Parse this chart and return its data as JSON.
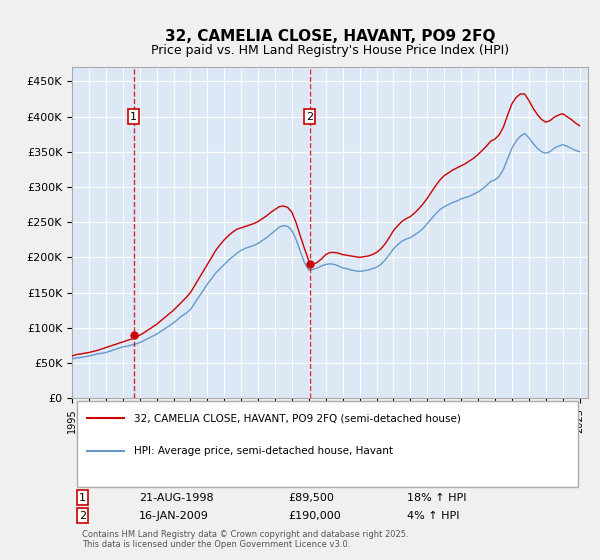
{
  "title": "32, CAMELIA CLOSE, HAVANT, PO9 2FQ",
  "subtitle": "Price paid vs. HM Land Registry's House Price Index (HPI)",
  "ylabel_ticks": [
    "£0",
    "£50K",
    "£100K",
    "£150K",
    "£200K",
    "£250K",
    "£300K",
    "£350K",
    "£400K",
    "£450K"
  ],
  "ytick_vals": [
    0,
    50000,
    100000,
    150000,
    200000,
    250000,
    300000,
    350000,
    400000,
    450000
  ],
  "ylim": [
    0,
    470000
  ],
  "xlim_start": 1995.0,
  "xlim_end": 2025.5,
  "background_color": "#e8f0f8",
  "plot_bg": "#dce8f5",
  "grid_color": "#ffffff",
  "line_color_red": "#cc0000",
  "line_color_blue": "#6699cc",
  "purchase1_x": 1998.645,
  "purchase1_y": 89500,
  "purchase1_label": "1",
  "purchase2_x": 2009.04,
  "purchase2_y": 190000,
  "purchase2_label": "2",
  "legend_label_red": "32, CAMELIA CLOSE, HAVANT, PO9 2FQ (semi-detached house)",
  "legend_label_blue": "HPI: Average price, semi-detached house, Havant",
  "table_row1": [
    "1",
    "21-AUG-1998",
    "£89,500",
    "18% ↑ HPI"
  ],
  "table_row2": [
    "2",
    "16-JAN-2009",
    "£190,000",
    "4% ↑ HPI"
  ],
  "footnote": "Contains HM Land Registry data © Crown copyright and database right 2025.\nThis data is licensed under the Open Government Licence v3.0.",
  "hpi_years": [
    1995,
    1995.25,
    1995.5,
    1995.75,
    1996,
    1996.25,
    1996.5,
    1996.75,
    1997,
    1997.25,
    1997.5,
    1997.75,
    1998,
    1998.25,
    1998.5,
    1998.75,
    1999,
    1999.25,
    1999.5,
    1999.75,
    2000,
    2000.25,
    2000.5,
    2000.75,
    2001,
    2001.25,
    2001.5,
    2001.75,
    2002,
    2002.25,
    2002.5,
    2002.75,
    2003,
    2003.25,
    2003.5,
    2003.75,
    2004,
    2004.25,
    2004.5,
    2004.75,
    2005,
    2005.25,
    2005.5,
    2005.75,
    2006,
    2006.25,
    2006.5,
    2006.75,
    2007,
    2007.25,
    2007.5,
    2007.75,
    2008,
    2008.25,
    2008.5,
    2008.75,
    2009,
    2009.25,
    2009.5,
    2009.75,
    2010,
    2010.25,
    2010.5,
    2010.75,
    2011,
    2011.25,
    2011.5,
    2011.75,
    2012,
    2012.25,
    2012.5,
    2012.75,
    2013,
    2013.25,
    2013.5,
    2013.75,
    2014,
    2014.25,
    2014.5,
    2014.75,
    2015,
    2015.25,
    2015.5,
    2015.75,
    2016,
    2016.25,
    2016.5,
    2016.75,
    2017,
    2017.25,
    2017.5,
    2017.75,
    2018,
    2018.25,
    2018.5,
    2018.75,
    2019,
    2019.25,
    2019.5,
    2019.75,
    2020,
    2020.25,
    2020.5,
    2020.75,
    2021,
    2021.25,
    2021.5,
    2021.75,
    2022,
    2022.25,
    2022.5,
    2022.75,
    2023,
    2023.25,
    2023.5,
    2023.75,
    2024,
    2024.25,
    2024.5,
    2024.75,
    2025
  ],
  "hpi_values": [
    56000,
    57000,
    58000,
    59000,
    60000,
    61500,
    63000,
    64000,
    65000,
    67000,
    69000,
    71000,
    73000,
    74000,
    75500,
    77000,
    79000,
    82000,
    85000,
    88000,
    91000,
    95000,
    99000,
    103000,
    107000,
    112000,
    117000,
    121000,
    126000,
    135000,
    144000,
    153000,
    162000,
    170000,
    178000,
    184000,
    190000,
    196000,
    201000,
    206000,
    210000,
    213000,
    215000,
    217000,
    220000,
    224000,
    228000,
    233000,
    238000,
    243000,
    245000,
    244000,
    238000,
    225000,
    208000,
    192000,
    182000,
    183000,
    185000,
    188000,
    190000,
    191000,
    190000,
    188000,
    185000,
    184000,
    182000,
    181000,
    180000,
    181000,
    182000,
    184000,
    186000,
    190000,
    196000,
    204000,
    212000,
    218000,
    223000,
    226000,
    228000,
    232000,
    236000,
    241000,
    248000,
    255000,
    262000,
    268000,
    272000,
    275000,
    278000,
    280000,
    283000,
    285000,
    287000,
    290000,
    293000,
    297000,
    302000,
    308000,
    310000,
    315000,
    325000,
    340000,
    355000,
    365000,
    372000,
    376000,
    370000,
    362000,
    355000,
    350000,
    348000,
    350000,
    355000,
    358000,
    360000,
    358000,
    355000,
    352000,
    350000
  ],
  "red_years": [
    1995,
    1995.25,
    1995.5,
    1995.75,
    1996,
    1996.25,
    1996.5,
    1996.75,
    1997,
    1997.25,
    1997.5,
    1997.75,
    1998,
    1998.25,
    1998.5,
    1998.75,
    1999,
    1999.25,
    1999.5,
    1999.75,
    2000,
    2000.25,
    2000.5,
    2000.75,
    2001,
    2001.25,
    2001.5,
    2001.75,
    2002,
    2002.25,
    2002.5,
    2002.75,
    2003,
    2003.25,
    2003.5,
    2003.75,
    2004,
    2004.25,
    2004.5,
    2004.75,
    2005,
    2005.25,
    2005.5,
    2005.75,
    2006,
    2006.25,
    2006.5,
    2006.75,
    2007,
    2007.25,
    2007.5,
    2007.75,
    2008,
    2008.25,
    2008.5,
    2008.75,
    2009,
    2009.25,
    2009.5,
    2009.75,
    2010,
    2010.25,
    2010.5,
    2010.75,
    2011,
    2011.25,
    2011.5,
    2011.75,
    2012,
    2012.25,
    2012.5,
    2012.75,
    2013,
    2013.25,
    2013.5,
    2013.75,
    2014,
    2014.25,
    2014.5,
    2014.75,
    2015,
    2015.25,
    2015.5,
    2015.75,
    2016,
    2016.25,
    2016.5,
    2016.75,
    2017,
    2017.25,
    2017.5,
    2017.75,
    2018,
    2018.25,
    2018.5,
    2018.75,
    2019,
    2019.25,
    2019.5,
    2019.75,
    2020,
    2020.25,
    2020.5,
    2020.75,
    2021,
    2021.25,
    2021.5,
    2021.75,
    2022,
    2022.25,
    2022.5,
    2022.75,
    2023,
    2023.25,
    2023.5,
    2023.75,
    2024,
    2024.25,
    2024.5,
    2024.75,
    2025
  ],
  "red_values": [
    60000,
    62000,
    63000,
    64000,
    65000,
    66500,
    68000,
    70000,
    72000,
    74000,
    76000,
    78000,
    80000,
    82000,
    84000,
    86000,
    89500,
    93000,
    97000,
    101000,
    105000,
    110000,
    115000,
    120000,
    125000,
    131000,
    137000,
    143000,
    150000,
    160000,
    170000,
    180000,
    190000,
    200000,
    210000,
    218000,
    225000,
    231000,
    236000,
    240000,
    242000,
    244000,
    246000,
    248000,
    251000,
    255000,
    259000,
    264000,
    268000,
    272000,
    273000,
    271000,
    264000,
    249000,
    230000,
    212000,
    195000,
    190000,
    193000,
    198000,
    204000,
    207000,
    207000,
    206000,
    204000,
    203000,
    202000,
    201000,
    200000,
    201000,
    202000,
    204000,
    207000,
    212000,
    219000,
    228000,
    238000,
    245000,
    251000,
    255000,
    258000,
    263000,
    269000,
    276000,
    284000,
    293000,
    302000,
    310000,
    316000,
    320000,
    324000,
    327000,
    330000,
    333000,
    337000,
    341000,
    346000,
    352000,
    358000,
    365000,
    368000,
    374000,
    385000,
    402000,
    418000,
    427000,
    432000,
    432000,
    423000,
    412000,
    403000,
    396000,
    392000,
    394000,
    399000,
    402000,
    404000,
    400000,
    396000,
    391000,
    387000
  ]
}
